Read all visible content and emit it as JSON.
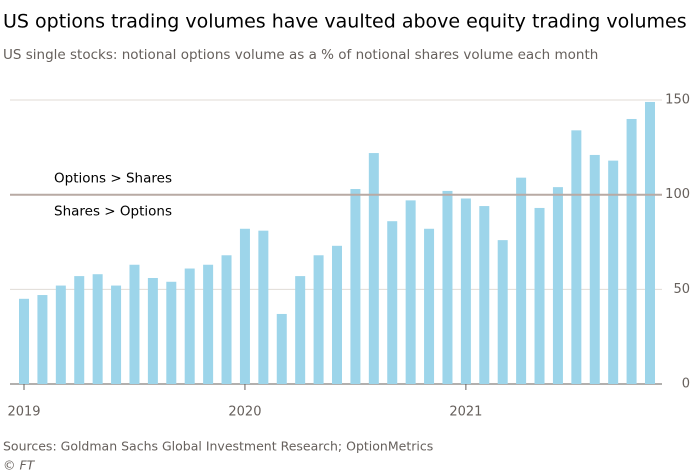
{
  "chart_data": {
    "type": "bar",
    "title": "US options trading volumes have vaulted above equity trading volumes",
    "subtitle": "US single stocks: notional options volume as a % of notional shares volume each month",
    "categories": [
      "2019",
      null,
      null,
      null,
      null,
      null,
      null,
      null,
      null,
      null,
      null,
      null,
      "2020",
      null,
      null,
      null,
      null,
      null,
      null,
      null,
      null,
      null,
      null,
      null,
      "2021",
      null,
      null,
      null,
      null,
      null,
      null,
      null,
      null,
      null,
      null
    ],
    "values": [
      45,
      47,
      52,
      57,
      58,
      52,
      63,
      56,
      54,
      61,
      63,
      68,
      82,
      81,
      37,
      57,
      68,
      73,
      103,
      122,
      86,
      97,
      82,
      102,
      98,
      94,
      76,
      109,
      93,
      104,
      134,
      121,
      118,
      140,
      149
    ],
    "color": "#9dd5ea",
    "ylim": [
      0,
      152
    ],
    "yticks": [
      0,
      50,
      100,
      150
    ],
    "grid": true,
    "reference_line": 100,
    "annotations": [
      "Options > Shares",
      "Shares > Options"
    ],
    "source": "Sources: Goldman Sachs Global Investment Research; OptionMetrics",
    "credit": "© FT"
  }
}
